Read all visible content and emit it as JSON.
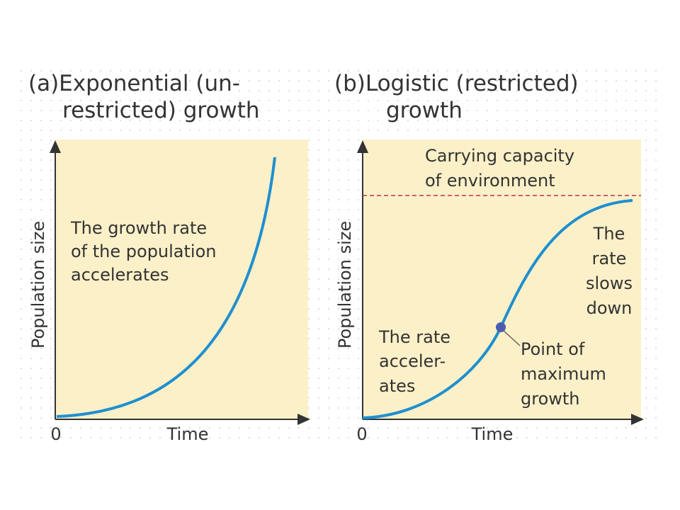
{
  "panels": [
    {
      "title_lines": [
        "(a)Exponential (un-",
        "restricted) growth"
      ],
      "y_axis_label": "Population size",
      "x_axis_label": "Time",
      "origin_label": "0",
      "annotations": [
        {
          "lines": [
            "The growth rate",
            "of the population",
            "accelerates"
          ]
        }
      ]
    },
    {
      "title_lines": [
        "(b)Logistic (restricted)",
        "growth"
      ],
      "y_axis_label": "Population size",
      "x_axis_label": "Time",
      "origin_label": "0",
      "annotations": [
        {
          "lines": [
            "Carrying capacity",
            "of environment"
          ]
        },
        {
          "lines": [
            "The",
            "rate",
            "slows",
            "down"
          ]
        },
        {
          "lines": [
            "The rate",
            "acceler-",
            "ates"
          ]
        },
        {
          "lines": [
            "Point of",
            "maximum",
            "growth"
          ]
        }
      ]
    }
  ]
}
